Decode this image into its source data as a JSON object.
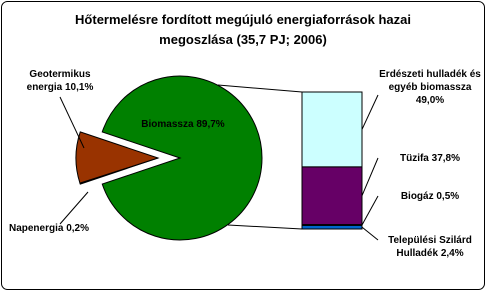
{
  "chart_data": {
    "type": "bar-of-pie",
    "title": "Hőtermelésre fordított megújuló energiaforrások hazai megoszlása (35,7 PJ; 2006)",
    "pie": {
      "categories": [
        "Biomassza",
        "Geotermikus energia",
        "Napenergia"
      ],
      "values": [
        89.7,
        10.1,
        0.2
      ],
      "value_labels": [
        "89,7%",
        "10,1%",
        "0,2%"
      ],
      "colors": [
        "#008000",
        "#993300",
        "#ffffff"
      ]
    },
    "bar": {
      "categories": [
        "Erdészeti hulladék és egyéb biomassza",
        "Tüzifa",
        "Biogáz",
        "Települési Szilárd Hulladék"
      ],
      "values": [
        49.0,
        37.8,
        0.5,
        2.4
      ],
      "value_labels": [
        "49,0%",
        "37,8%",
        "0,5%",
        "2,4%"
      ],
      "colors": [
        "#ccffff",
        "#660066",
        "#ffffcc",
        "#0066cc"
      ]
    }
  }
}
